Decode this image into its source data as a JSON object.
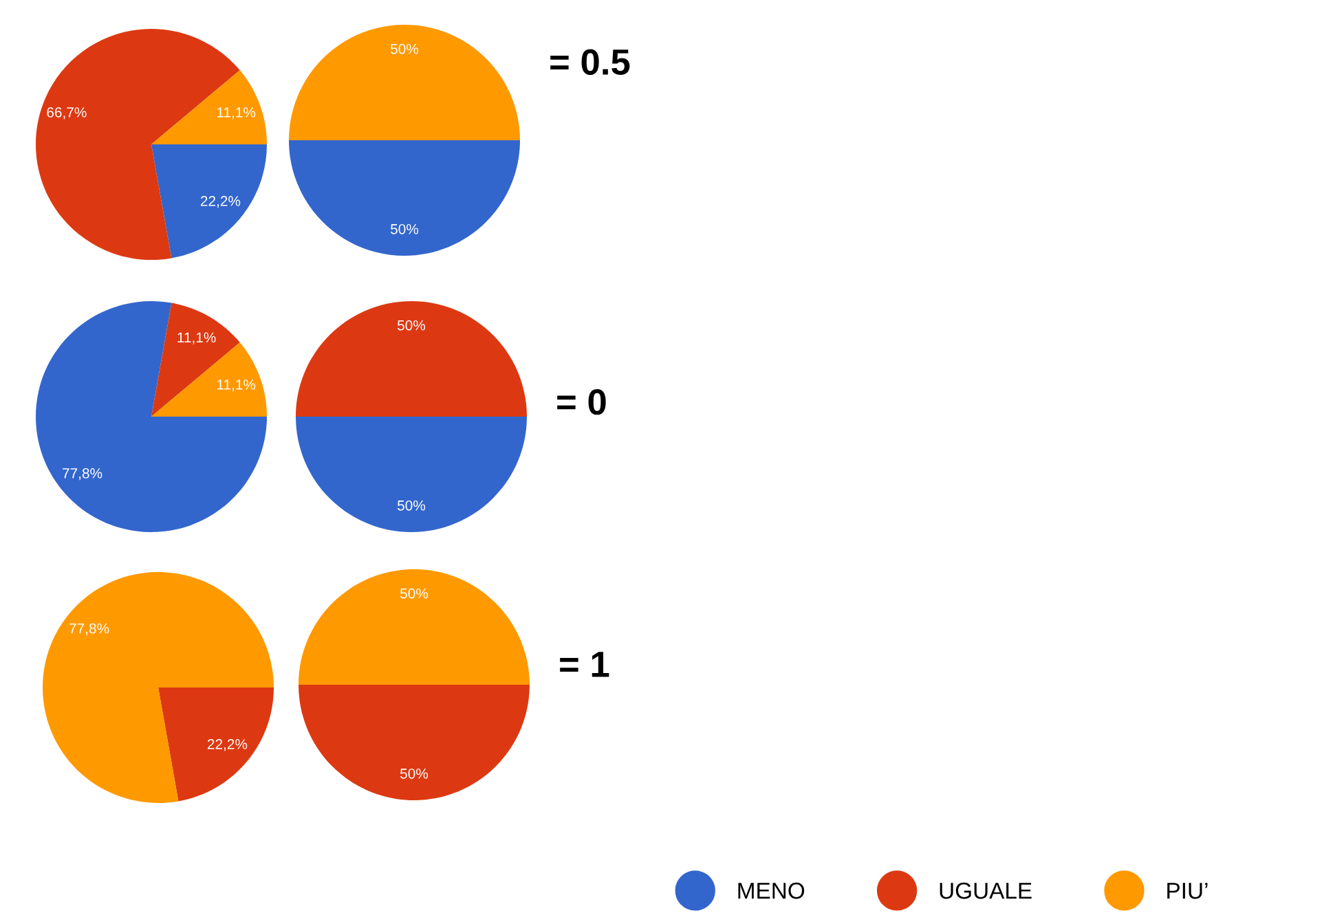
{
  "chart_data": [
    {
      "type": "pie",
      "categories": [
        "MENO",
        "UGUALE",
        "PIU’"
      ],
      "values": [
        22.2,
        66.7,
        11.1
      ],
      "colors": [
        "#3366cc",
        "#dc3912",
        "#ff9900"
      ],
      "value_labels": [
        "22,2%",
        "66,7%",
        "11,1%"
      ],
      "legend": "bottom right"
    },
    {
      "type": "pie",
      "categories": [
        null,
        null,
        null
      ],
      "values": [
        50,
        0,
        50
      ],
      "colors": [
        "#3366cc",
        "#dc3912",
        "#ff9900"
      ],
      "value_labels": [
        "50%",
        null,
        "50%"
      ],
      "annotations": [
        "= 0.5"
      ]
    },
    {
      "type": "pie",
      "categories": [
        null,
        null,
        null
      ],
      "values": [
        77.8,
        11.1,
        11.1
      ],
      "colors": [
        "#3366cc",
        "#dc3912",
        "#ff9900"
      ],
      "value_labels": [
        "77,8%",
        "11,1%",
        "11,1%"
      ]
    },
    {
      "type": "pie",
      "categories": [
        null,
        null,
        null
      ],
      "values": [
        50,
        50,
        0
      ],
      "colors": [
        "#3366cc",
        "#dc3912",
        "#ff9900"
      ],
      "value_labels": [
        "50%",
        "50%",
        null
      ],
      "annotations": [
        "= 0"
      ]
    },
    {
      "type": "pie",
      "categories": [
        null,
        null,
        null
      ],
      "values": [
        0,
        22.2,
        77.8
      ],
      "colors": [
        "#3366cc",
        "#dc3912",
        "#ff9900"
      ],
      "value_labels": [
        null,
        "22,2%",
        "77,8%"
      ]
    },
    {
      "type": "pie",
      "categories": [
        null,
        null,
        null
      ],
      "values": [
        0,
        50,
        50
      ],
      "colors": [
        "#3366cc",
        "#dc3912",
        "#ff9900"
      ],
      "value_labels": [
        null,
        "50%",
        "50%"
      ],
      "annotations": [
        "= 1"
      ]
    }
  ]
}
